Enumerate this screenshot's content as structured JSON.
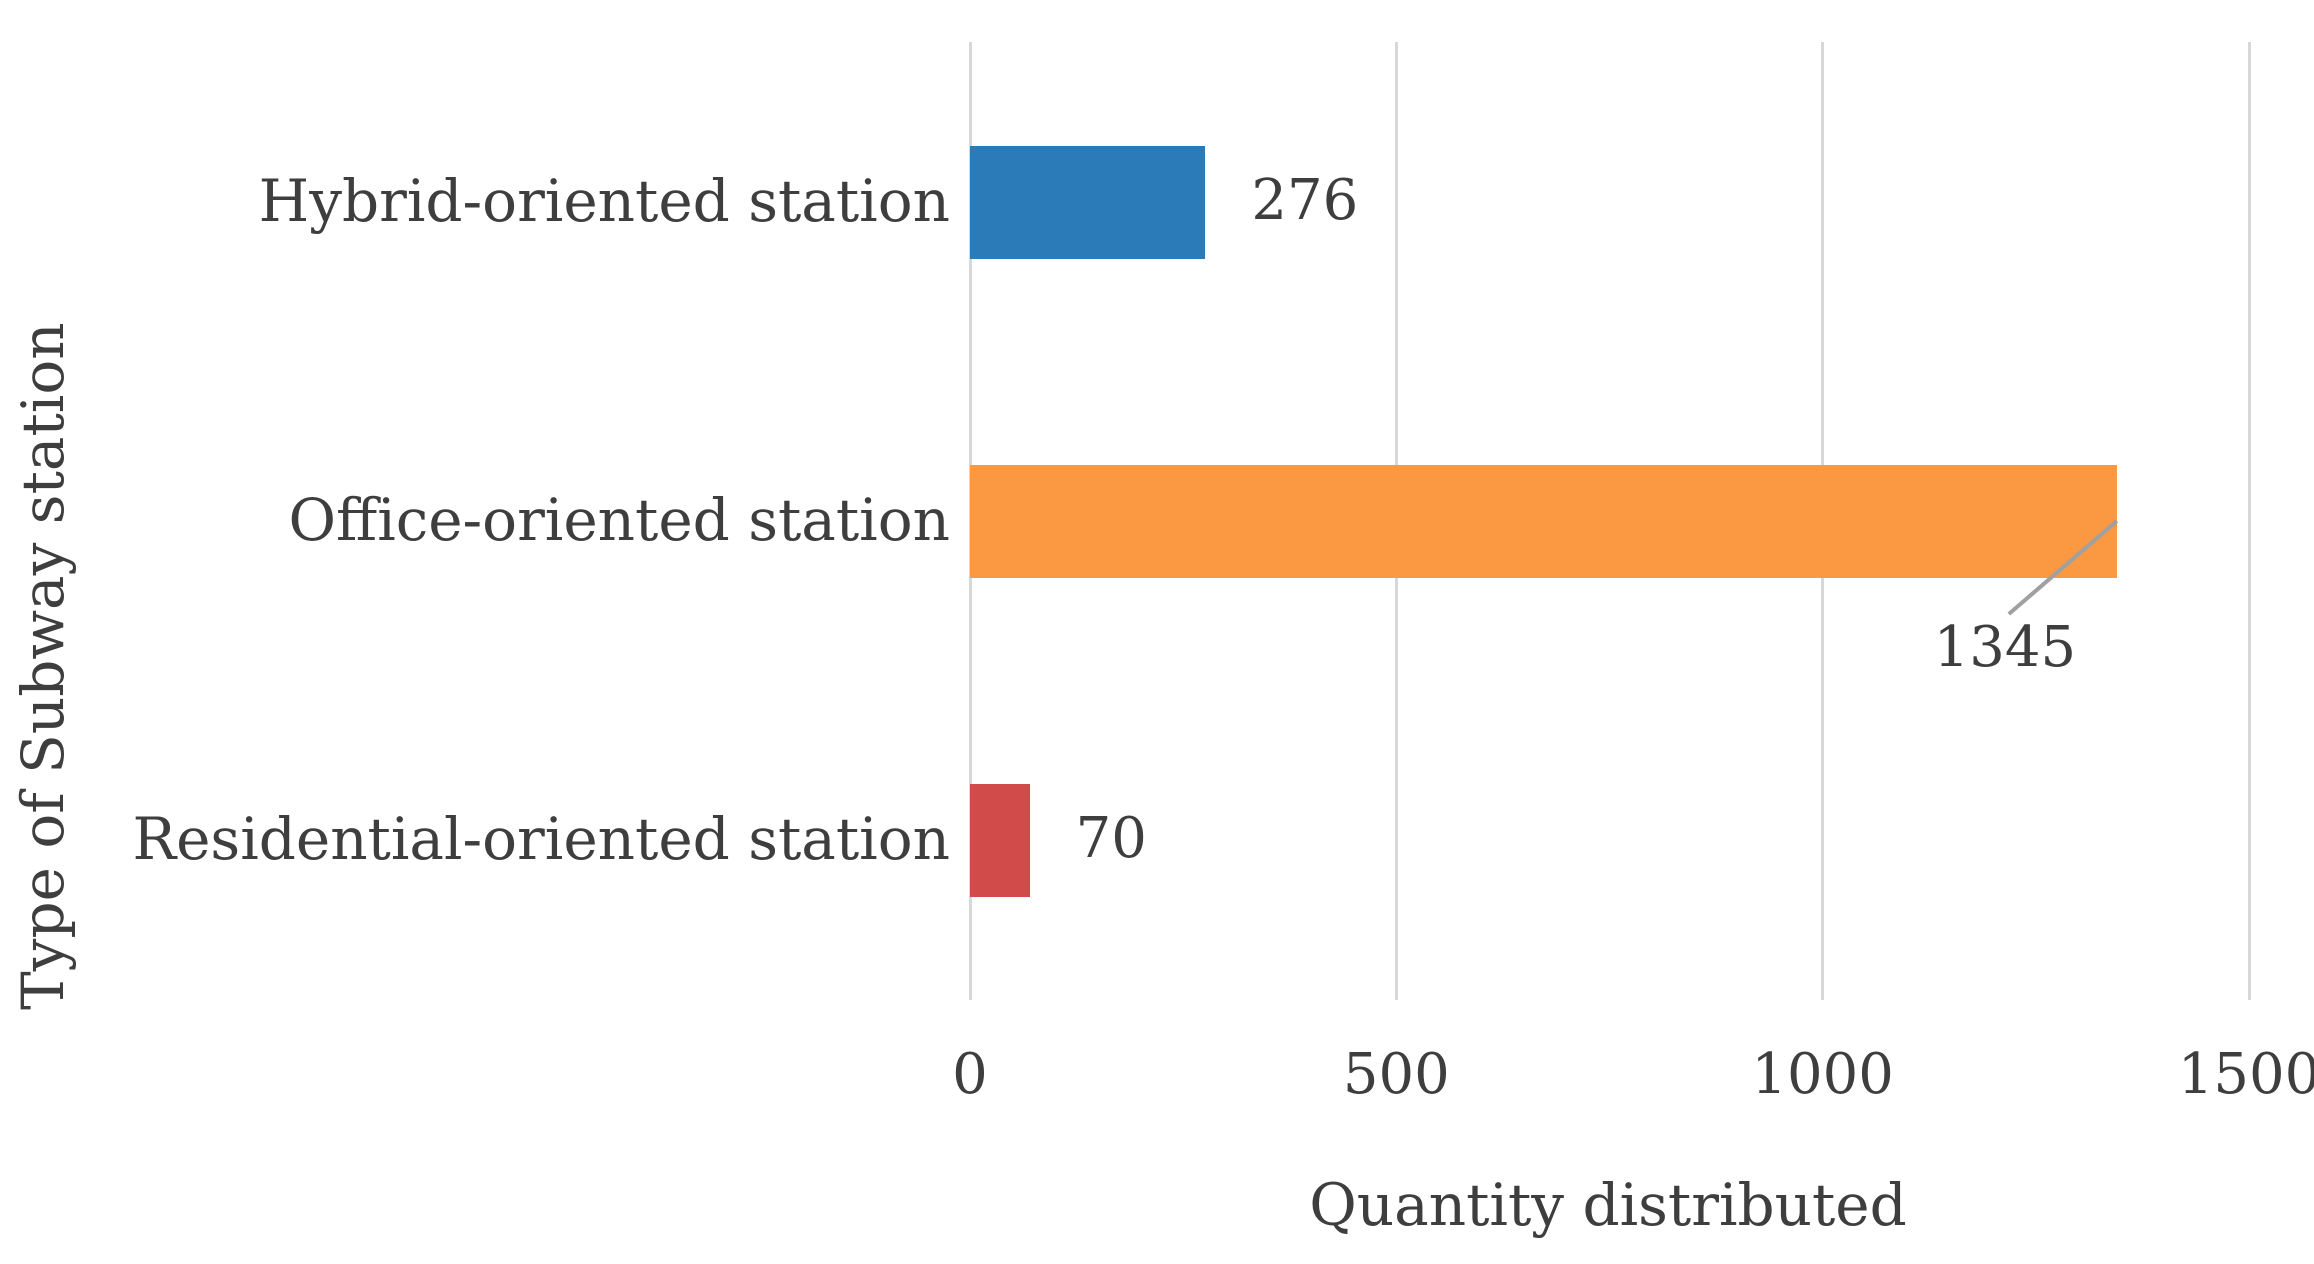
{
  "chart_data": {
    "type": "bar",
    "orientation": "horizontal",
    "title": "",
    "xlabel": "Quantity distributed",
    "ylabel": "Type of Subway station",
    "categories": [
      "Hybrid-oriented station",
      "Office-oriented station",
      "Residential-oriented station"
    ],
    "values": [
      276,
      1345,
      70
    ],
    "value_labels": [
      "276",
      "1345",
      "70"
    ],
    "bar_colors": [
      "#2b7bb9",
      "#fb9842",
      "#d14b4b"
    ],
    "xlim": [
      0,
      1500
    ],
    "xticks": [
      "0",
      "500",
      "1000",
      "1500"
    ],
    "xtick_values": [
      0,
      500,
      1000,
      1500
    ],
    "grid": "vertical-only",
    "legend": "none",
    "annotations": [
      {
        "category": "Office-oriented station",
        "text": "1345",
        "style": "leader-line-to-label-below-bar"
      }
    ],
    "colors": {
      "gridline": "#d8d8d8",
      "text": "#3e3e3e",
      "leader_line": "#a0a0a0",
      "background": "#ffffff"
    }
  }
}
